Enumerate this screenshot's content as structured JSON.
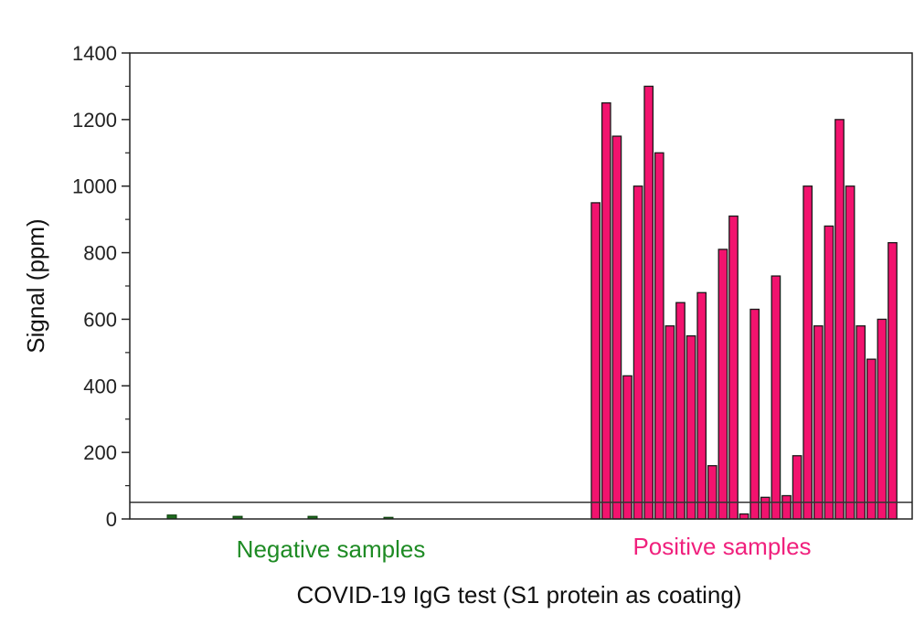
{
  "chart_data": {
    "type": "bar",
    "title": "",
    "xlabel": "COVID-19 IgG test (S1 protein as coating)",
    "ylabel": "Signal (ppm)",
    "ylim": [
      0,
      1400
    ],
    "yticks": [
      0,
      200,
      400,
      600,
      800,
      1000,
      1200,
      1400
    ],
    "threshold": 50,
    "groups": [
      {
        "label": "Negative samples",
        "color": "#1e8b24"
      },
      {
        "label": "Positive samples",
        "color": "#f0217d"
      }
    ],
    "series": [
      {
        "name": "Negative samples",
        "color": "#1e6b1e",
        "values": [
          12,
          8,
          8,
          5
        ]
      },
      {
        "name": "Positive samples",
        "color": "#f2136e",
        "values": [
          950,
          1250,
          1150,
          430,
          1000,
          1300,
          1100,
          580,
          650,
          550,
          680,
          160,
          810,
          910,
          15,
          630,
          65,
          730,
          70,
          190,
          1000,
          580,
          880,
          1200,
          1000,
          580,
          480,
          600,
          830
        ]
      }
    ]
  }
}
